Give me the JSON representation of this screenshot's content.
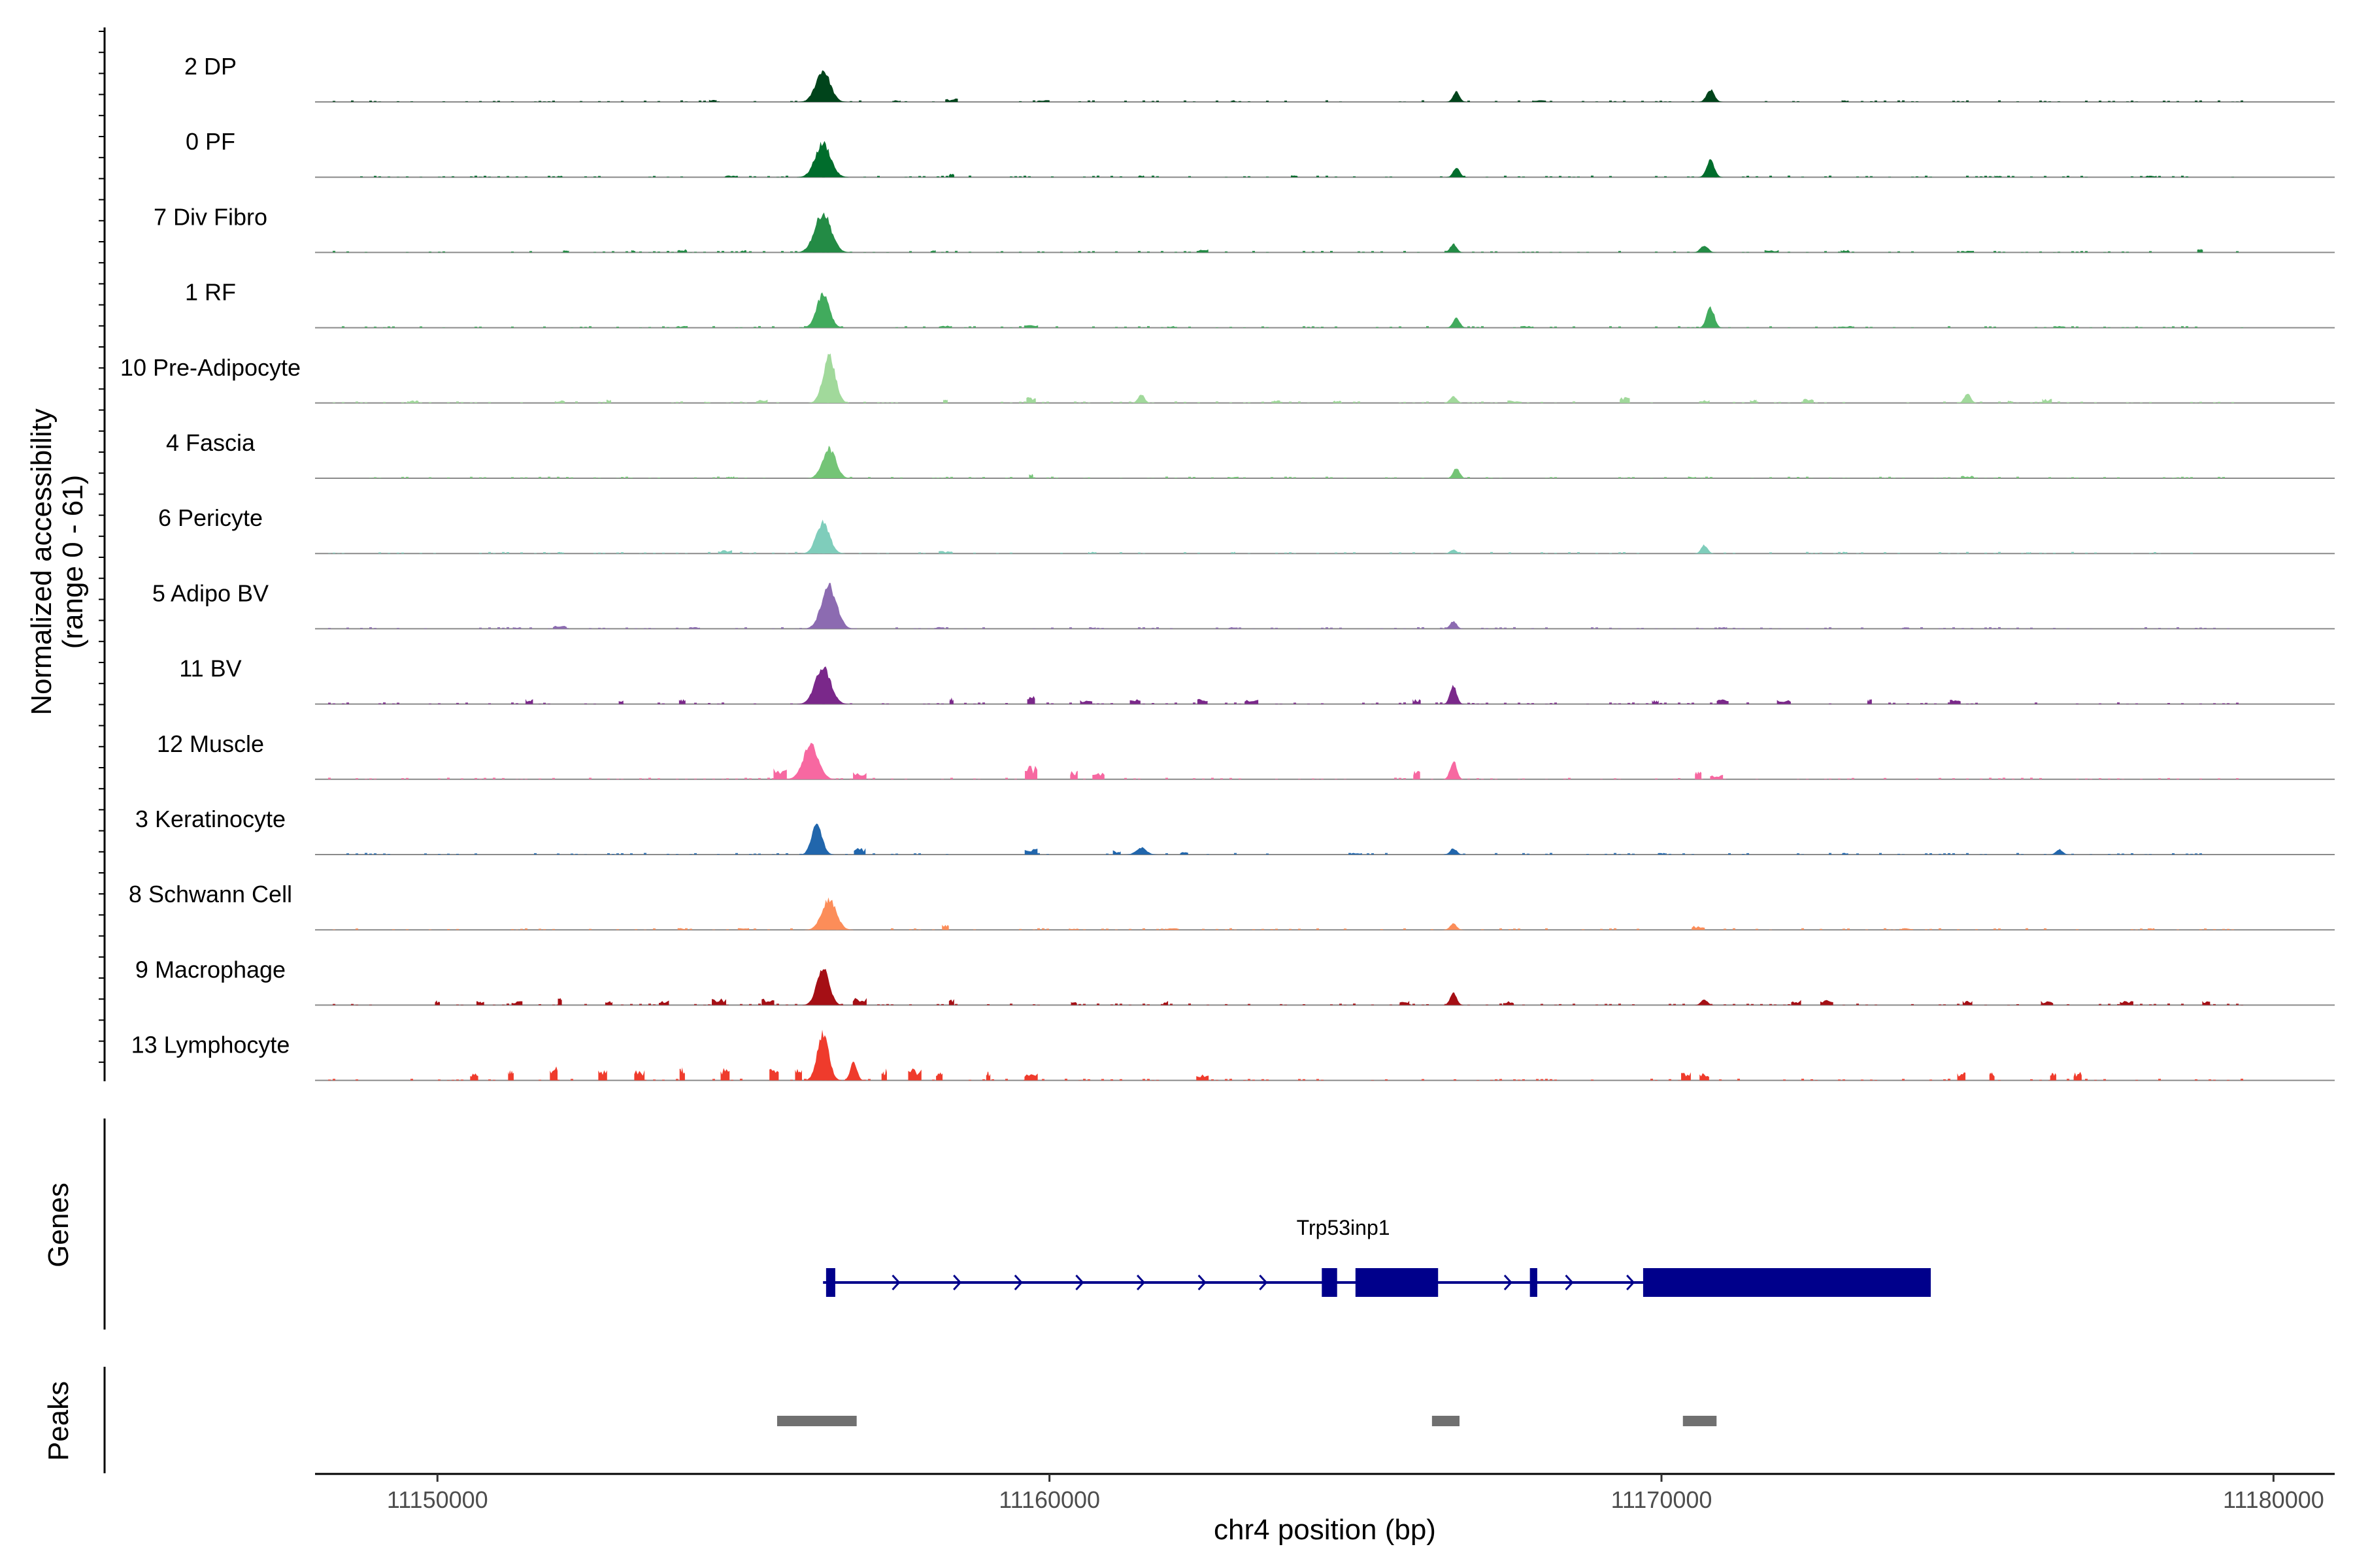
{
  "chart_data": {
    "type": "area",
    "ylabel_line1": "Normalized accessibility",
    "ylabel_line2": "(range 0 - 61)",
    "y_range": [
      0,
      61
    ],
    "xlabel": "chr4 position (bp)",
    "xlim": [
      11148000,
      11181000
    ],
    "x_ticks": [
      11150000,
      11160000,
      11170000,
      11180000
    ],
    "x_tick_labels": [
      "11150000",
      "11160000",
      "11170000",
      "11180000"
    ],
    "genes_label": "Genes",
    "peaks_label": "Peaks",
    "tracks": [
      {
        "name": "2 DP",
        "color": "#00441b",
        "peaks": [
          [
            11156300,
            41,
            280
          ],
          [
            11166650,
            13,
            100
          ],
          [
            11170800,
            16,
            150
          ]
        ],
        "noise": [
          [
            11154500,
            3
          ],
          [
            11157500,
            2
          ],
          [
            11158400,
            4
          ],
          [
            11159900,
            2
          ],
          [
            11163000,
            2
          ],
          [
            11173000,
            2
          ],
          [
            11168000,
            2
          ]
        ]
      },
      {
        "name": "0 PF",
        "color": "#006d2c",
        "peaks": [
          [
            11156300,
            44,
            300
          ],
          [
            11166650,
            12,
            100
          ],
          [
            11170800,
            22,
            150
          ]
        ],
        "noise": [
          [
            11152000,
            2
          ],
          [
            11154800,
            2
          ],
          [
            11158400,
            4
          ],
          [
            11161500,
            2
          ],
          [
            11164000,
            2
          ],
          [
            11175500,
            2
          ],
          [
            11178000,
            2
          ]
        ]
      },
      {
        "name": "7 Div Fibro",
        "color": "#238b45",
        "peaks": [
          [
            11156300,
            51,
            320
          ],
          [
            11166600,
            11,
            100
          ],
          [
            11170700,
            9,
            150
          ]
        ],
        "noise": [
          [
            11152100,
            3
          ],
          [
            11153200,
            3
          ],
          [
            11154000,
            4
          ],
          [
            11155000,
            3
          ],
          [
            11158100,
            3
          ],
          [
            11162500,
            4
          ],
          [
            11171800,
            3
          ],
          [
            11173000,
            3
          ],
          [
            11175000,
            2
          ],
          [
            11178800,
            4
          ]
        ]
      },
      {
        "name": "1 RF",
        "color": "#41ab5d",
        "peaks": [
          [
            11156300,
            43,
            250
          ],
          [
            11166650,
            13,
            100
          ],
          [
            11170800,
            27,
            150
          ]
        ],
        "noise": [
          [
            11154000,
            2
          ],
          [
            11158300,
            3
          ],
          [
            11159700,
            3
          ],
          [
            11162000,
            2
          ],
          [
            11167800,
            2
          ],
          [
            11173000,
            2
          ],
          [
            11176500,
            2
          ]
        ]
      },
      {
        "name": "10 Pre-Adipocyte",
        "color": "#a1d99b",
        "peaks": [
          [
            11156400,
            61,
            240
          ],
          [
            11161500,
            11,
            120
          ],
          [
            11166600,
            9,
            100
          ],
          [
            11175000,
            12,
            120
          ]
        ],
        "noise": [
          [
            11149600,
            3
          ],
          [
            11152000,
            3
          ],
          [
            11152800,
            4
          ],
          [
            11154400,
            2
          ],
          [
            11155300,
            4
          ],
          [
            11158300,
            4
          ],
          [
            11159700,
            7
          ],
          [
            11163700,
            4
          ],
          [
            11164700,
            3
          ],
          [
            11167600,
            3
          ],
          [
            11169400,
            7
          ],
          [
            11170700,
            4
          ],
          [
            11171500,
            4
          ],
          [
            11172400,
            5
          ],
          [
            11175700,
            3
          ],
          [
            11176300,
            5
          ]
        ]
      },
      {
        "name": "4 Fascia",
        "color": "#74c476",
        "peaks": [
          [
            11156400,
            39,
            260
          ],
          [
            11166650,
            13,
            100
          ]
        ],
        "noise": [
          [
            11154800,
            2
          ],
          [
            11159700,
            6
          ],
          [
            11175000,
            3
          ],
          [
            11163000,
            2
          ],
          [
            11170500,
            2
          ]
        ]
      },
      {
        "name": "6 Pericyte",
        "color": "#7fcdbb",
        "peaks": [
          [
            11156300,
            40,
            260
          ],
          [
            11170700,
            11,
            120
          ],
          [
            11166600,
            5,
            80
          ]
        ],
        "noise": [
          [
            11152000,
            2
          ],
          [
            11154700,
            4
          ],
          [
            11158300,
            3
          ],
          [
            11160700,
            2
          ],
          [
            11163000,
            2
          ],
          [
            11173000,
            2
          ],
          [
            11176000,
            2
          ]
        ]
      },
      {
        "name": "5 Adipo BV",
        "color": "#8c6bb1",
        "peaks": [
          [
            11156400,
            55,
            300
          ],
          [
            11166600,
            10,
            120
          ]
        ],
        "noise": [
          [
            11151300,
            2
          ],
          [
            11152000,
            4
          ],
          [
            11154200,
            2
          ],
          [
            11158200,
            2
          ],
          [
            11160700,
            2
          ],
          [
            11163000,
            2
          ],
          [
            11171000,
            2
          ],
          [
            11174000,
            2
          ]
        ]
      },
      {
        "name": "11 BV",
        "color": "#7a288a",
        "peaks": [
          [
            11156300,
            48,
            300
          ],
          [
            11166600,
            24,
            100
          ]
        ],
        "noise": [
          [
            11151500,
            6
          ],
          [
            11153000,
            6
          ],
          [
            11154000,
            6
          ],
          [
            11158400,
            8
          ],
          [
            11159700,
            10
          ],
          [
            11160600,
            5
          ],
          [
            11161400,
            6
          ],
          [
            11162500,
            6
          ],
          [
            11163300,
            5
          ],
          [
            11166000,
            6
          ],
          [
            11169900,
            5
          ],
          [
            11171000,
            6
          ],
          [
            11172000,
            5
          ],
          [
            11173400,
            6
          ],
          [
            11174800,
            5
          ]
        ]
      },
      {
        "name": "12 Muscle",
        "color": "#f768a1",
        "peaks": [
          [
            11156100,
            44,
            300
          ],
          [
            11166600,
            24,
            70
          ]
        ],
        "noise": [
          [
            11155600,
            14
          ],
          [
            11156900,
            10
          ],
          [
            11159700,
            16
          ],
          [
            11160400,
            10
          ],
          [
            11160800,
            8
          ],
          [
            11166000,
            10
          ],
          [
            11170600,
            10
          ],
          [
            11170900,
            6
          ]
        ]
      },
      {
        "name": "3 Keratinocyte",
        "color": "#2166ac",
        "peaks": [
          [
            11156200,
            41,
            200
          ],
          [
            11161500,
            9,
            200
          ],
          [
            11166600,
            8,
            100
          ],
          [
            11176500,
            7,
            100
          ]
        ],
        "noise": [
          [
            11156900,
            8
          ],
          [
            11159700,
            7
          ],
          [
            11161100,
            5
          ],
          [
            11162200,
            3
          ],
          [
            11165000,
            2
          ],
          [
            11170000,
            2
          ],
          [
            11173000,
            2
          ]
        ]
      },
      {
        "name": "8 Schwann Cell",
        "color": "#fc8d59",
        "peaks": [
          [
            11156400,
            40,
            280
          ],
          [
            11166600,
            8,
            100
          ]
        ],
        "noise": [
          [
            11154000,
            2
          ],
          [
            11155000,
            3
          ],
          [
            11158300,
            6
          ],
          [
            11160400,
            2
          ],
          [
            11162000,
            2
          ],
          [
            11170600,
            5
          ],
          [
            11174000,
            2
          ],
          [
            11178000,
            2
          ]
        ]
      },
      {
        "name": "9 Macrophage",
        "color": "#a50f15",
        "peaks": [
          [
            11156300,
            48,
            240
          ],
          [
            11166600,
            16,
            100
          ],
          [
            11170700,
            7,
            80
          ]
        ],
        "noise": [
          [
            11150000,
            6
          ],
          [
            11150700,
            5
          ],
          [
            11151300,
            5
          ],
          [
            11152000,
            9
          ],
          [
            11152800,
            5
          ],
          [
            11153700,
            6
          ],
          [
            11154600,
            8
          ],
          [
            11155400,
            8
          ],
          [
            11156900,
            10
          ],
          [
            11158400,
            8
          ],
          [
            11160400,
            4
          ],
          [
            11161900,
            5
          ],
          [
            11165800,
            5
          ],
          [
            11167500,
            5
          ],
          [
            11172200,
            6
          ],
          [
            11172700,
            6
          ],
          [
            11175000,
            5
          ],
          [
            11176300,
            5
          ],
          [
            11177600,
            5
          ],
          [
            11178900,
            5
          ]
        ]
      },
      {
        "name": "13 Lymphocyte",
        "color": "#ef3b2c",
        "peaks": [
          [
            11156300,
            61,
            220
          ],
          [
            11156800,
            25,
            120
          ]
        ],
        "noise": [
          [
            11150600,
            10
          ],
          [
            11151200,
            14
          ],
          [
            11151900,
            18
          ],
          [
            11152700,
            14
          ],
          [
            11153300,
            12
          ],
          [
            11154000,
            16
          ],
          [
            11154700,
            16
          ],
          [
            11155500,
            14
          ],
          [
            11155900,
            18
          ],
          [
            11157300,
            14
          ],
          [
            11157800,
            14
          ],
          [
            11158200,
            10
          ],
          [
            11159000,
            12
          ],
          [
            11159700,
            10
          ],
          [
            11162500,
            8
          ],
          [
            11170400,
            10
          ],
          [
            11170700,
            10
          ],
          [
            11174900,
            10
          ],
          [
            11175400,
            10
          ],
          [
            11176400,
            10
          ],
          [
            11176800,
            10
          ]
        ]
      }
    ],
    "gene": {
      "name": "Trp53inp1",
      "start": 11156300,
      "end": 11174400,
      "strand": "+",
      "exons": [
        [
          11156350,
          11156500
        ],
        [
          11164450,
          11164700
        ],
        [
          11165000,
          11166350
        ],
        [
          11167850,
          11167970
        ],
        [
          11169700,
          11174400
        ]
      ],
      "color": "#00008b"
    },
    "peaks_bed": [
      [
        11155550,
        11156850
      ],
      [
        11166250,
        11166700
      ],
      [
        11170350,
        11170900
      ]
    ],
    "peak_color": "#707070"
  }
}
